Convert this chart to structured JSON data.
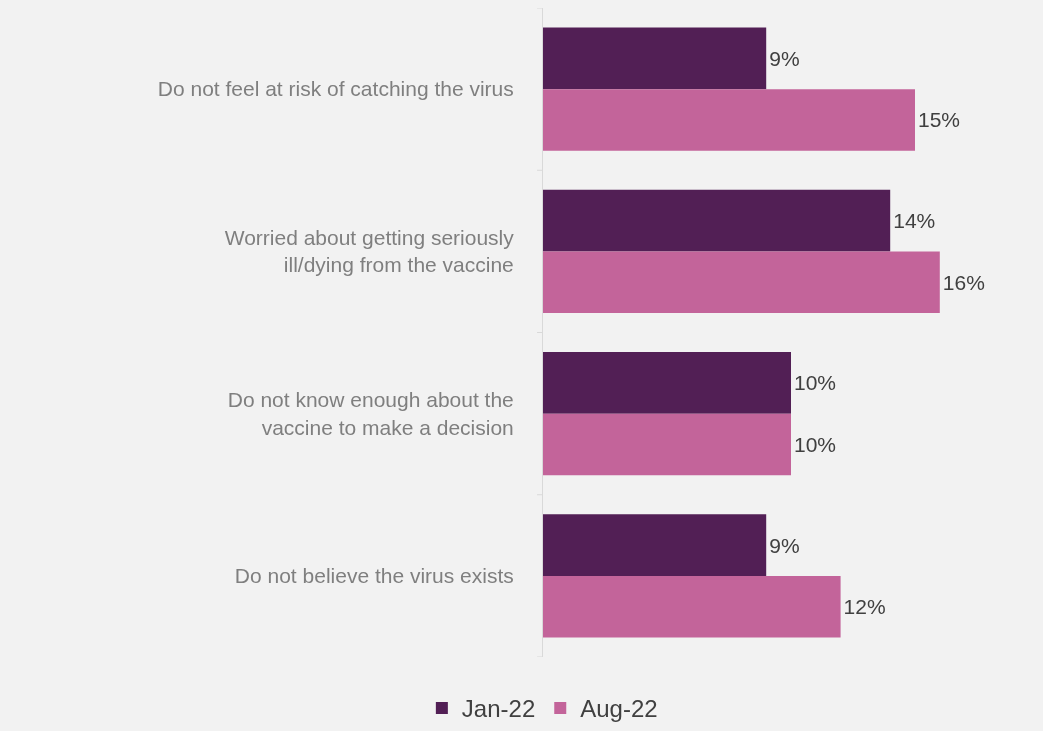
{
  "chart_data": {
    "type": "bar",
    "orientation": "horizontal",
    "categories": [
      "Do not feel at risk of catching the virus",
      "Worried about getting seriously\nill/dying from the vaccine",
      "Do not know enough about the\nvaccine to make a decision",
      "Do not believe the virus exists"
    ],
    "series": [
      {
        "name": "Jan-22",
        "color": "#521f55",
        "values": [
          9,
          14,
          10,
          9
        ],
        "value_labels": [
          "9%",
          "14%",
          "10%",
          "9%"
        ]
      },
      {
        "name": "Aug-22",
        "color": "#c3649a",
        "values": [
          15,
          16,
          10,
          12
        ],
        "value_labels": [
          "15%",
          "16%",
          "10%",
          "12%"
        ]
      }
    ],
    "xlim": [
      0,
      20
    ],
    "tick_labels": "y",
    "grid": false,
    "legend": "bottom"
  }
}
